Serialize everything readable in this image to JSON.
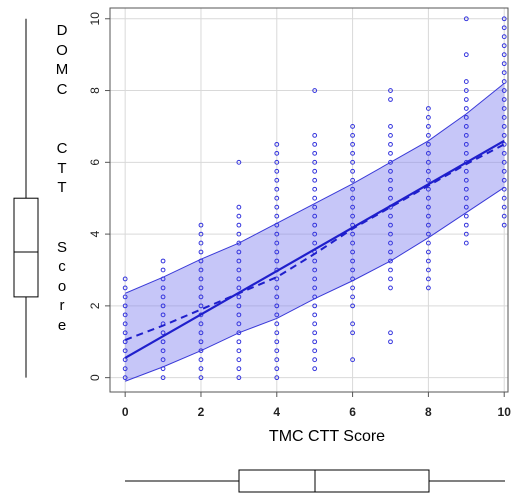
{
  "chart_data": {
    "type": "scatter",
    "title": "",
    "xlabel": "TMC CTT Score",
    "ylabel": "DOMC CTT Score",
    "xlim": [
      -0.4,
      10.1
    ],
    "ylim": [
      -0.4,
      10.3
    ],
    "x_ticks": [
      0,
      2,
      4,
      6,
      8,
      10
    ],
    "y_ticks": [
      0,
      2,
      4,
      6,
      8,
      10
    ],
    "x_tick_labels": [
      "0",
      "2",
      "4",
      "6",
      "8",
      "10"
    ],
    "y_tick_labels": [
      "0",
      "2",
      "4",
      "6",
      "8",
      "10"
    ],
    "grid": true,
    "points": {
      "color": "#3333dd",
      "columns": [
        {
          "x": 0,
          "y": [
            0,
            0.25,
            0.5,
            0.75,
            1.0,
            1.25,
            1.5,
            1.75,
            2.0,
            2.25,
            2.5,
            2.75
          ]
        },
        {
          "x": 1,
          "y": [
            0,
            0.25,
            0.5,
            0.75,
            1.0,
            1.25,
            1.5,
            1.75,
            2.0,
            2.25,
            2.5,
            2.75,
            3.0,
            3.25
          ]
        },
        {
          "x": 2,
          "y": [
            0,
            0.25,
            0.5,
            0.75,
            1.0,
            1.25,
            1.5,
            1.75,
            2.0,
            2.25,
            2.5,
            2.75,
            3.0,
            3.25,
            3.5,
            3.75,
            4.0,
            4.25
          ]
        },
        {
          "x": 3,
          "y": [
            0,
            0.25,
            0.5,
            0.75,
            1.0,
            1.25,
            1.5,
            1.75,
            2.0,
            2.25,
            2.5,
            2.75,
            3.0,
            3.25,
            3.5,
            3.75,
            4.0,
            4.25,
            4.5,
            4.75,
            6.0
          ]
        },
        {
          "x": 4,
          "y": [
            0,
            0.25,
            0.5,
            0.75,
            1.0,
            1.25,
            1.5,
            1.75,
            2.0,
            2.25,
            2.5,
            2.75,
            3.0,
            3.25,
            3.5,
            3.75,
            4.0,
            4.25,
            4.5,
            4.75,
            5.0,
            5.25,
            5.5,
            5.75,
            6.0,
            6.25,
            6.5
          ]
        },
        {
          "x": 5,
          "y": [
            0.25,
            0.5,
            0.75,
            1.0,
            1.25,
            1.5,
            1.75,
            2.0,
            2.25,
            2.5,
            2.75,
            3.0,
            3.25,
            3.5,
            3.75,
            4.0,
            4.25,
            4.5,
            4.75,
            5.0,
            5.25,
            5.5,
            5.75,
            6.0,
            6.25,
            6.5,
            6.75,
            8.0
          ]
        },
        {
          "x": 6,
          "y": [
            0.5,
            1.25,
            1.5,
            2.0,
            2.25,
            2.5,
            2.75,
            3.0,
            3.25,
            3.5,
            3.75,
            4.0,
            4.25,
            4.5,
            4.75,
            5.0,
            5.25,
            5.5,
            5.75,
            6.0,
            6.25,
            6.5,
            6.75,
            7.0
          ]
        },
        {
          "x": 7,
          "y": [
            1.0,
            1.25,
            2.5,
            2.75,
            3.0,
            3.25,
            3.5,
            3.75,
            4.0,
            4.25,
            4.5,
            4.75,
            5.0,
            5.25,
            5.5,
            5.75,
            6.0,
            6.25,
            6.5,
            6.75,
            7.0,
            7.75,
            8.0
          ]
        },
        {
          "x": 8,
          "y": [
            2.5,
            2.75,
            3.0,
            3.25,
            3.5,
            3.75,
            4.0,
            4.25,
            4.5,
            4.75,
            5.0,
            5.25,
            5.5,
            5.75,
            6.0,
            6.25,
            6.5,
            6.75,
            7.0,
            7.25,
            7.5
          ]
        },
        {
          "x": 9,
          "y": [
            3.75,
            4.0,
            4.25,
            4.5,
            4.75,
            5.0,
            5.25,
            5.5,
            5.75,
            6.0,
            6.25,
            6.5,
            6.75,
            7.0,
            7.25,
            7.5,
            7.75,
            8.0,
            8.25,
            9.0,
            10.0
          ]
        },
        {
          "x": 10,
          "y": [
            4.25,
            4.5,
            4.75,
            5.0,
            5.25,
            5.5,
            5.75,
            6.0,
            6.25,
            6.5,
            6.75,
            7.0,
            7.25,
            7.5,
            7.75,
            8.0,
            8.25,
            8.5,
            8.75,
            9.0,
            9.25,
            9.5,
            9.75,
            10.0
          ]
        }
      ]
    },
    "fit_line": {
      "style": "solid",
      "color": "#1f1fcc",
      "x": [
        0,
        10
      ],
      "y": [
        0.55,
        6.6
      ]
    },
    "smooth_line": {
      "style": "dashed",
      "color": "#1f1fcc",
      "x": [
        0,
        1,
        2,
        3,
        4,
        5,
        6,
        7,
        8,
        9,
        10
      ],
      "y": [
        1.05,
        1.45,
        1.9,
        2.35,
        2.8,
        3.45,
        4.15,
        4.75,
        5.35,
        5.95,
        6.5
      ]
    },
    "band": {
      "color": "#8080f0",
      "x": [
        0,
        1,
        2,
        3,
        4,
        5,
        6,
        7,
        8,
        9,
        10
      ],
      "upper": [
        2.35,
        2.8,
        3.3,
        3.75,
        4.3,
        4.85,
        5.4,
        6.0,
        6.6,
        7.35,
        8.2
      ],
      "lower": [
        -0.1,
        0.3,
        0.75,
        1.25,
        1.65,
        2.2,
        2.7,
        3.25,
        3.9,
        4.6,
        5.3
      ]
    },
    "marginal_boxplot_y": {
      "low": 0,
      "q1": 2.25,
      "median": 3.5,
      "q3": 5.0,
      "high": 10
    },
    "marginal_boxplot_x": {
      "low": 0,
      "q1": 3,
      "median": 5,
      "q3": 8,
      "high": 10
    }
  }
}
